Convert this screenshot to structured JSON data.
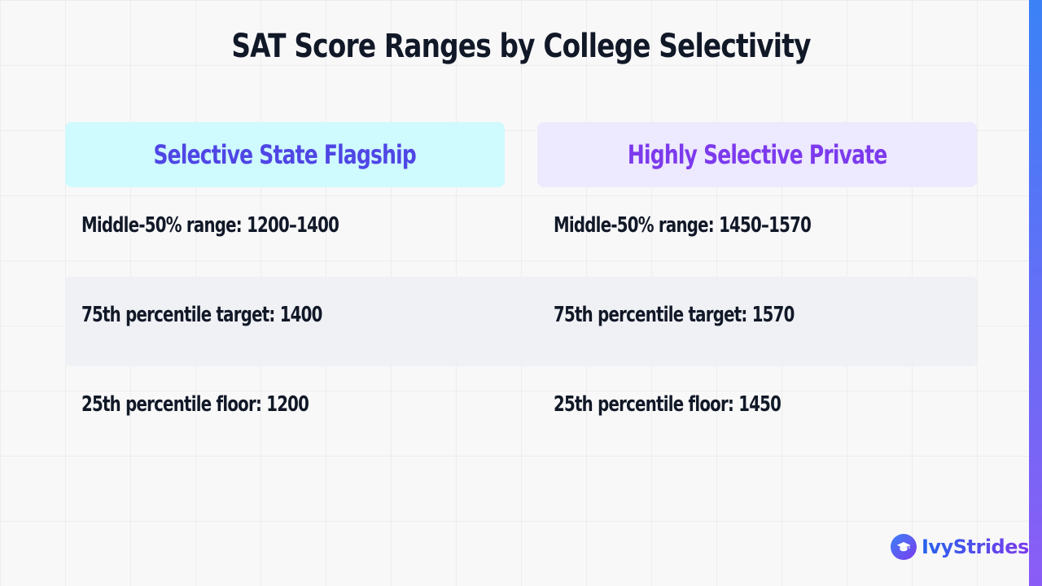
{
  "slide": {
    "title": "SAT Score Ranges by College Selectivity"
  },
  "columns": [
    "Selective State Flagship",
    "Highly Selective Private"
  ],
  "rows": [
    {
      "flagship": "Middle-50% range: 1200–1400",
      "private": "Middle-50% range: 1450–1570"
    },
    {
      "flagship": "75th percentile target: 1400",
      "private": "75th percentile target: 1570"
    },
    {
      "flagship": "25th percentile floor: 1200",
      "private": "25th percentile floor: 1450"
    }
  ],
  "brand": {
    "name": "IvyStrides",
    "icon": "graduation-cap-icon"
  },
  "colors": {
    "title": "#111827",
    "flagship_header_bg": "#cffafe",
    "flagship_header_text": "#4f46e5",
    "private_header_bg": "#ede9fe",
    "private_header_text": "#7c3aed",
    "accent_top": "#3b82f6",
    "accent_bottom": "#8b5cf6"
  }
}
